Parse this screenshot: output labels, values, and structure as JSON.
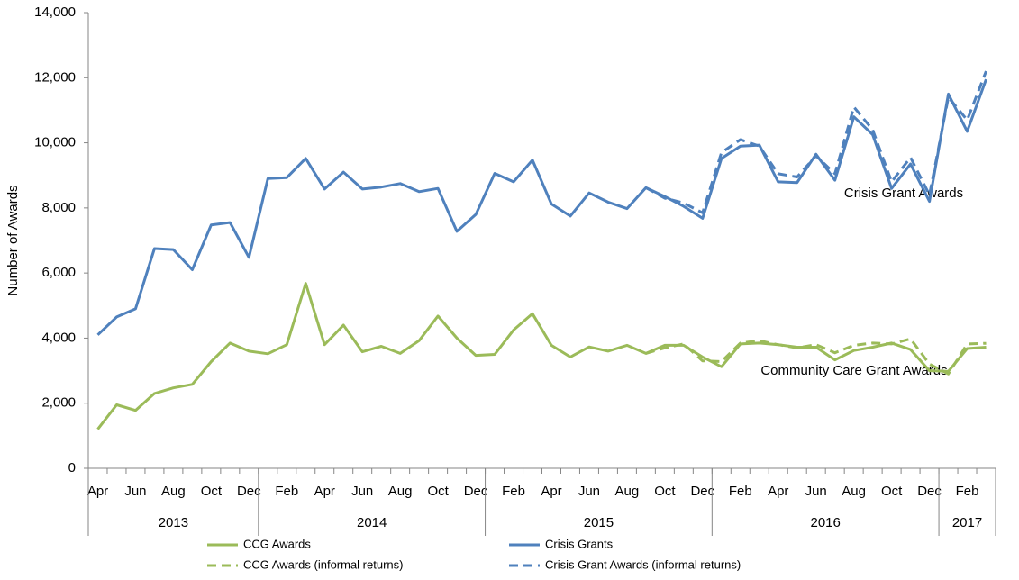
{
  "chart_data": {
    "type": "line",
    "y_label": "Number of Awards",
    "categories": [
      "Apr",
      null,
      "Jun",
      null,
      "Aug",
      null,
      "Oct",
      null,
      "Dec",
      null,
      "Feb",
      null,
      "Apr",
      null,
      "Jun",
      null,
      "Aug",
      null,
      "Oct",
      null,
      "Dec",
      null,
      "Feb",
      null,
      "Apr",
      null,
      "Jun",
      null,
      "Aug",
      null,
      "Oct",
      null,
      "Dec",
      null,
      "Feb",
      null,
      "Apr",
      null,
      "Jun",
      null,
      "Aug",
      null,
      "Oct",
      null,
      "Dec",
      null,
      "Feb",
      null
    ],
    "x_groups": [
      {
        "label": "2013",
        "count": 9
      },
      {
        "label": "2014",
        "count": 12
      },
      {
        "label": "2015",
        "count": 12
      },
      {
        "label": "2016",
        "count": 12
      },
      {
        "label": "2017",
        "count": 3
      }
    ],
    "series": [
      {
        "name": "CCG Awards",
        "color": "#9bbb59",
        "dashed": false,
        "values": [
          1200,
          1950,
          1780,
          2300,
          2470,
          2580,
          3280,
          3850,
          3600,
          3520,
          3800,
          5680,
          3800,
          4400,
          3580,
          3750,
          3530,
          3920,
          4680,
          4000,
          3470,
          3500,
          4250,
          4750,
          3780,
          3420,
          3730,
          3600,
          3780,
          3530,
          3780,
          3780,
          3420,
          3120,
          3820,
          3850,
          3800,
          3720,
          3720,
          3330,
          3620,
          3720,
          3850,
          3650,
          3000,
          2980,
          3680,
          3720
        ]
      },
      {
        "name": "Crisis Grants",
        "color": "#4f81bd",
        "dashed": false,
        "values": [
          4100,
          4650,
          4900,
          6750,
          6720,
          6100,
          7480,
          7550,
          6480,
          8900,
          8930,
          9520,
          8580,
          9100,
          8580,
          8640,
          8750,
          8500,
          8600,
          7280,
          7800,
          9060,
          8800,
          9470,
          8120,
          7750,
          8460,
          8180,
          7980,
          8620,
          8350,
          8050,
          7680,
          9520,
          9900,
          9930,
          8800,
          8780,
          9650,
          8850,
          10800,
          10250,
          8600,
          9350,
          8200,
          11500,
          10350,
          11950
        ]
      },
      {
        "name": "CCG Awards (informal returns)",
        "color": "#9bbb59",
        "dashed": true,
        "values": [
          null,
          null,
          null,
          null,
          null,
          null,
          null,
          null,
          null,
          null,
          null,
          null,
          null,
          null,
          null,
          null,
          null,
          null,
          null,
          null,
          null,
          null,
          null,
          null,
          null,
          null,
          null,
          null,
          null,
          3530,
          3700,
          3820,
          3300,
          3280,
          3850,
          3920,
          3800,
          3700,
          3800,
          3550,
          3780,
          3850,
          3820,
          3980,
          3200,
          2900,
          3820,
          3840
        ]
      },
      {
        "name": "Crisis Grant Awards (informal returns)",
        "color": "#4f81bd",
        "dashed": true,
        "values": [
          null,
          null,
          null,
          null,
          null,
          null,
          null,
          null,
          null,
          null,
          null,
          null,
          null,
          null,
          null,
          null,
          null,
          null,
          null,
          null,
          null,
          null,
          null,
          null,
          null,
          null,
          null,
          null,
          null,
          8620,
          8300,
          8150,
          7850,
          9700,
          10100,
          9900,
          9050,
          8950,
          9600,
          9050,
          11100,
          10400,
          8800,
          9550,
          8400,
          11400,
          10700,
          12200
        ]
      }
    ],
    "annotations": [
      "Crisis Grant Awards",
      "Community Care Grant Awards"
    ],
    "ylim": [
      0,
      14000
    ],
    "yticks": [
      0,
      {
        "value": 2000,
        "label": "2,000"
      },
      {
        "value": 4000,
        "label": "4,000"
      },
      {
        "value": 6000,
        "label": "6,000"
      },
      {
        "value": 8000,
        "label": "8,000"
      },
      {
        "value": 10000,
        "label": "10,000"
      },
      {
        "value": 12000,
        "label": "12,000"
      },
      {
        "value": 14000,
        "label": "14,000"
      }
    ],
    "grid": false
  }
}
